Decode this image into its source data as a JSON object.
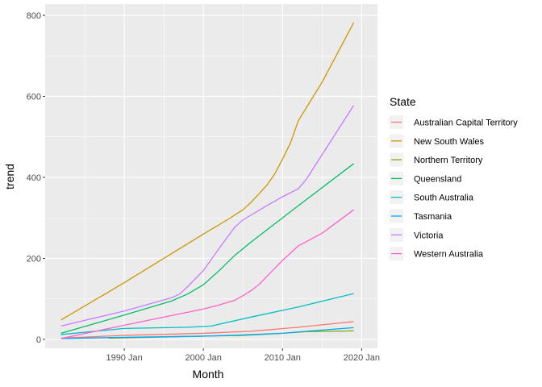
{
  "chart_data": {
    "type": "line",
    "title": "",
    "xlabel": "Month",
    "ylabel": "trend",
    "xlim": [
      1980.0,
      2022.0
    ],
    "ylim": [
      -22,
      828
    ],
    "x_ticks": [
      {
        "value": 1990,
        "label": "1990 Jan"
      },
      {
        "value": 2000,
        "label": "2000 Jan"
      },
      {
        "value": 2010,
        "label": "2010 Jan"
      },
      {
        "value": 2020,
        "label": "2020 Jan"
      }
    ],
    "x_minor_ticks": [
      1985,
      1995,
      2005,
      2015
    ],
    "y_ticks": [
      0,
      200,
      400,
      600,
      800
    ],
    "y_minor_ticks": [
      100,
      300,
      500,
      700
    ],
    "legend_title": "State",
    "legend_position": "right",
    "series": [
      {
        "name": "Australian Capital Territory",
        "color": "#F8766D",
        "points": [
          [
            1982.0,
            3
          ],
          [
            1990,
            10
          ],
          [
            2000,
            15
          ],
          [
            2006,
            20
          ],
          [
            2012,
            30
          ],
          [
            2019,
            44
          ]
        ]
      },
      {
        "name": "New South Wales",
        "color": "#CD9600",
        "points": [
          [
            1982.0,
            48
          ],
          [
            1990,
            140
          ],
          [
            2000,
            260
          ],
          [
            2003,
            295
          ],
          [
            2005,
            320
          ],
          [
            2006,
            338
          ],
          [
            2008,
            380
          ],
          [
            2009,
            408
          ],
          [
            2010,
            445
          ],
          [
            2011,
            485
          ],
          [
            2012,
            540
          ],
          [
            2015,
            635
          ],
          [
            2019,
            782
          ]
        ]
      },
      {
        "name": "Northern Territory",
        "color": "#7CAE00",
        "points": [
          [
            1988.0,
            3
          ],
          [
            1995,
            6
          ],
          [
            2000,
            8
          ],
          [
            2005,
            10
          ],
          [
            2010,
            15
          ],
          [
            2013,
            19
          ],
          [
            2019,
            21
          ]
        ]
      },
      {
        "name": "Queensland",
        "color": "#00BE67",
        "points": [
          [
            1982.0,
            15
          ],
          [
            1990,
            60
          ],
          [
            1996,
            95
          ],
          [
            1998,
            112
          ],
          [
            2000,
            135
          ],
          [
            2002,
            170
          ],
          [
            2004,
            208
          ],
          [
            2006,
            240
          ],
          [
            2012,
            330
          ],
          [
            2019,
            434
          ]
        ]
      },
      {
        "name": "South Australia",
        "color": "#00BFC4",
        "points": [
          [
            1982.0,
            12
          ],
          [
            1990,
            27
          ],
          [
            1998,
            30
          ],
          [
            2001,
            33
          ],
          [
            2003,
            42
          ],
          [
            2006,
            55
          ],
          [
            2012,
            80
          ],
          [
            2019,
            113
          ]
        ]
      },
      {
        "name": "Tasmania",
        "color": "#00A9FF",
        "points": [
          [
            1982.0,
            2
          ],
          [
            1990,
            5
          ],
          [
            2000,
            8
          ],
          [
            2005,
            11
          ],
          [
            2010,
            15
          ],
          [
            2013,
            20
          ],
          [
            2019,
            29
          ]
        ]
      },
      {
        "name": "Victoria",
        "color": "#C77CFF",
        "points": [
          [
            1982.0,
            33
          ],
          [
            1990,
            70
          ],
          [
            1996,
            103
          ],
          [
            1997,
            112
          ],
          [
            1998,
            130
          ],
          [
            2000,
            170
          ],
          [
            2002,
            225
          ],
          [
            2004,
            278
          ],
          [
            2005,
            295
          ],
          [
            2008,
            330
          ],
          [
            2010,
            352
          ],
          [
            2012,
            372
          ],
          [
            2013,
            395
          ],
          [
            2019,
            578
          ]
        ]
      },
      {
        "name": "Western Australia",
        "color": "#FF61CC",
        "points": [
          [
            1982.0,
            2
          ],
          [
            1990,
            35
          ],
          [
            2000,
            75
          ],
          [
            2002,
            85
          ],
          [
            2004,
            97
          ],
          [
            2005,
            108
          ],
          [
            2006,
            120
          ],
          [
            2007,
            135
          ],
          [
            2008,
            155
          ],
          [
            2010,
            195
          ],
          [
            2012,
            231
          ],
          [
            2015,
            262
          ],
          [
            2019,
            320
          ]
        ]
      }
    ]
  }
}
